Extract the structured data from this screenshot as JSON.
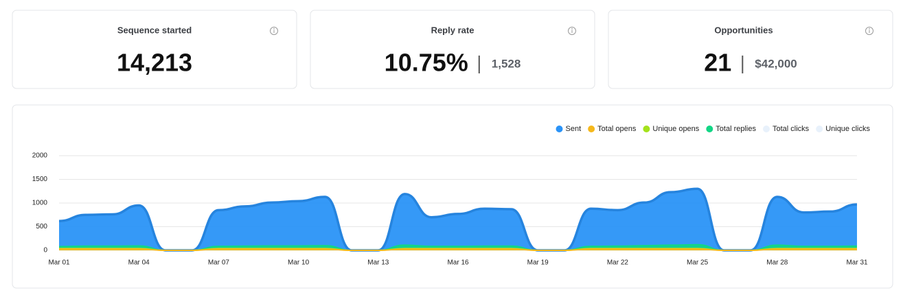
{
  "cards": [
    {
      "title": "Sequence started",
      "value": "14,213"
    },
    {
      "title": "Reply rate",
      "value": "10.75%",
      "secondary": "1,528"
    },
    {
      "title": "Opportunities",
      "value": "21",
      "secondary": "$42,000"
    }
  ],
  "chart_data": {
    "type": "area",
    "categories": [
      "Mar 01",
      null,
      null,
      "Mar 04",
      null,
      null,
      "Mar 07",
      null,
      null,
      "Mar 10",
      null,
      null,
      "Mar 13",
      null,
      null,
      "Mar 16",
      null,
      null,
      "Mar 19",
      null,
      null,
      "Mar 22",
      null,
      null,
      "Mar 25",
      null,
      null,
      "Mar 28",
      null,
      null,
      "Mar 31"
    ],
    "ylim": [
      0,
      2000
    ],
    "yticks": [
      0,
      500,
      1000,
      1500,
      2000
    ],
    "grid": true,
    "legend": "top-right",
    "series": [
      {
        "name": "Sent",
        "color": "#2a93f7",
        "values": [
          620,
          750,
          760,
          950,
          0,
          0,
          850,
          930,
          1010,
          1040,
          1130,
          0,
          0,
          1190,
          700,
          770,
          880,
          870,
          0,
          0,
          880,
          850,
          1010,
          1230,
          1300,
          0,
          0,
          1130,
          800,
          820,
          970
        ]
      },
      {
        "name": "Total opens",
        "color": "#f5b81c",
        "values": [
          30,
          30,
          30,
          30,
          0,
          0,
          30,
          30,
          30,
          30,
          30,
          0,
          0,
          30,
          30,
          30,
          30,
          30,
          0,
          0,
          30,
          30,
          30,
          30,
          30,
          0,
          0,
          30,
          30,
          30,
          30
        ]
      },
      {
        "name": "Unique opens",
        "color": "#a4e21c",
        "values": [
          40,
          40,
          40,
          40,
          0,
          0,
          40,
          40,
          40,
          40,
          40,
          0,
          0,
          40,
          40,
          40,
          40,
          40,
          0,
          0,
          40,
          40,
          40,
          40,
          40,
          0,
          0,
          40,
          40,
          40,
          40
        ]
      },
      {
        "name": "Total replies",
        "color": "#12d685",
        "values": [
          80,
          90,
          90,
          95,
          0,
          0,
          85,
          90,
          95,
          95,
          100,
          0,
          0,
          110,
          85,
          85,
          90,
          90,
          0,
          0,
          85,
          90,
          100,
          110,
          120,
          0,
          0,
          110,
          85,
          85,
          90
        ]
      },
      {
        "name": "Total clicks",
        "color": "#e8f1fb",
        "visible": false
      },
      {
        "name": "Unique clicks",
        "color": "#e8f1fb",
        "visible": false
      }
    ]
  }
}
